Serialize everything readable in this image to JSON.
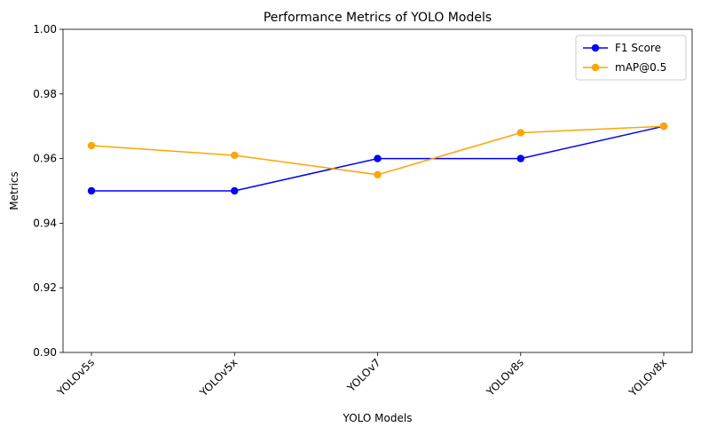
{
  "chart_data": {
    "type": "line",
    "title": "Performance Metrics of YOLO Models",
    "xlabel": "YOLO Models",
    "ylabel": "Metrics",
    "categories": [
      "YOLOv5s",
      "YOLOv5x",
      "YOLOv7",
      "YOLOv8s",
      "YOLOv8x"
    ],
    "ylim": [
      0.9,
      1.0
    ],
    "yticks": [
      0.9,
      0.92,
      0.94,
      0.96,
      0.98,
      1.0
    ],
    "ytick_labels": [
      "0.90",
      "0.92",
      "0.94",
      "0.96",
      "0.98",
      "1.00"
    ],
    "xtick_rotation": 45,
    "grid": false,
    "legend_position": "top-right",
    "series": [
      {
        "name": "F1 Score",
        "color": "#0000ff",
        "marker": "circle",
        "values": [
          0.95,
          0.95,
          0.96,
          0.96,
          0.97
        ]
      },
      {
        "name": "mAP@0.5",
        "color": "#ffa500",
        "marker": "circle",
        "values": [
          0.964,
          0.961,
          0.955,
          0.968,
          0.97
        ]
      }
    ]
  }
}
